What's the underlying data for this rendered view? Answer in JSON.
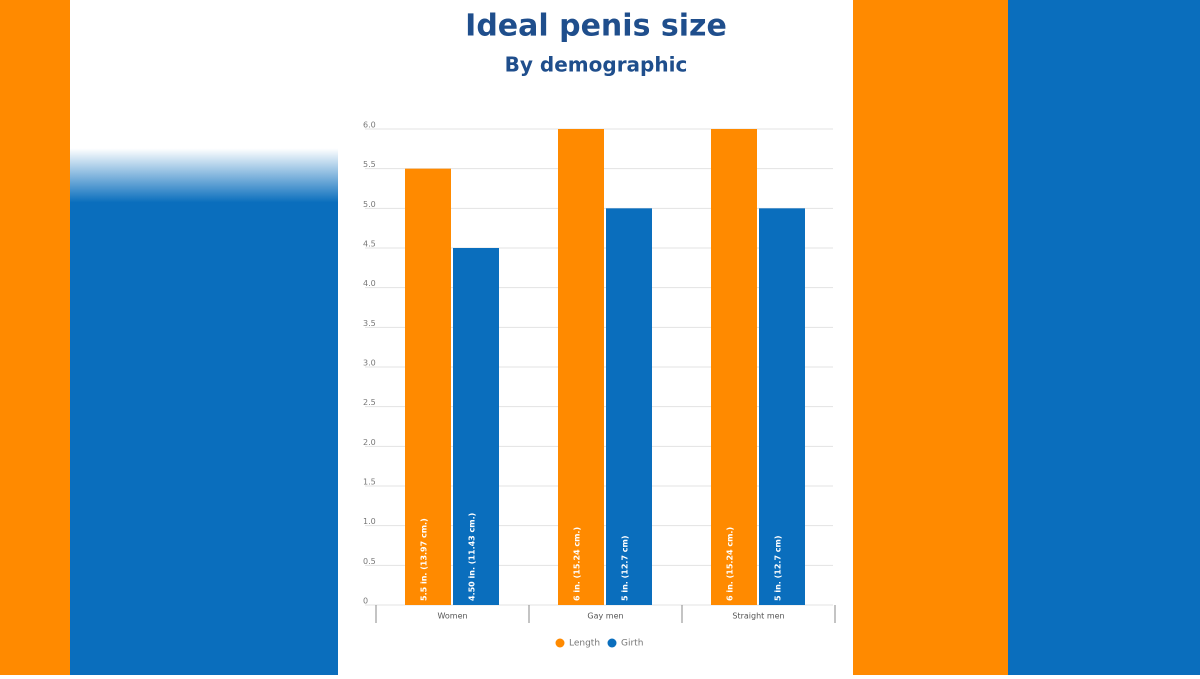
{
  "chart_data": {
    "type": "bar",
    "title": "Ideal penis size",
    "subtitle": "By demographic",
    "categories": [
      "Women",
      "Gay men",
      "Straight men"
    ],
    "series": [
      {
        "name": "Length",
        "color": "#ff8a00",
        "values": [
          5.5,
          6,
          6
        ],
        "value_labels": [
          "5.5 in. (13.97 cm.)",
          "6 in. (15.24 cm.)",
          "6 in. (15.24 cm.)"
        ]
      },
      {
        "name": "Girth",
        "color": "#0a6ebd",
        "values": [
          4.5,
          5,
          5
        ],
        "value_labels": [
          "4.50 in. (11.43 cm.)",
          "5 in. (12.7 cm)",
          "5 in. (12.7 cm)"
        ]
      }
    ],
    "ylim": [
      0,
      6
    ],
    "yticks": [
      0,
      0.5,
      {
        "value": 1,
        "label": "1.0"
      },
      1.5,
      {
        "value": 2,
        "label": "2.0"
      },
      2.5,
      {
        "value": 3,
        "label": "3.0"
      },
      3.5,
      {
        "value": 4,
        "label": "4.0"
      },
      4.5,
      {
        "value": 5,
        "label": "5.0"
      },
      5.5,
      {
        "value": 6,
        "label": "6.0"
      }
    ],
    "grid": true,
    "legend": "bottom"
  }
}
